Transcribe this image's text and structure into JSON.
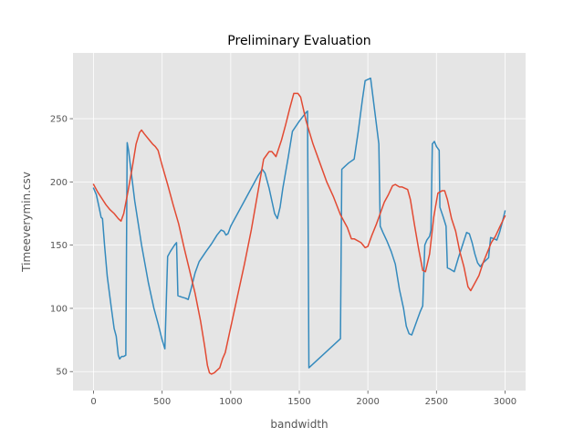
{
  "chart_data": {
    "type": "line",
    "title": "Preliminary Evaluation",
    "xlabel": "bandwidth",
    "ylabel": "Timeeverymin.csv",
    "xlim": [
      -150,
      3150
    ],
    "ylim": [
      35,
      302
    ],
    "xticks": [
      0,
      500,
      1000,
      1500,
      2000,
      2500,
      3000
    ],
    "yticks": [
      50,
      100,
      150,
      200,
      250
    ],
    "grid": true,
    "style": "ggplot",
    "background_color": "#E5E5E5",
    "series": [
      {
        "color": "#348ABD",
        "points": [
          [
            0,
            195
          ],
          [
            20,
            190
          ],
          [
            40,
            180
          ],
          [
            55,
            172
          ],
          [
            65,
            171
          ],
          [
            80,
            150
          ],
          [
            100,
            125
          ],
          [
            130,
            100
          ],
          [
            150,
            84
          ],
          [
            165,
            78
          ],
          [
            180,
            63
          ],
          [
            190,
            60
          ],
          [
            205,
            62
          ],
          [
            220,
            62
          ],
          [
            235,
            63
          ],
          [
            245,
            231
          ],
          [
            255,
            225
          ],
          [
            300,
            185
          ],
          [
            350,
            150
          ],
          [
            400,
            120
          ],
          [
            440,
            100
          ],
          [
            470,
            88
          ],
          [
            500,
            75
          ],
          [
            520,
            68
          ],
          [
            540,
            141
          ],
          [
            560,
            145
          ],
          [
            590,
            150
          ],
          [
            605,
            152
          ],
          [
            615,
            110
          ],
          [
            640,
            109
          ],
          [
            670,
            108
          ],
          [
            690,
            107
          ],
          [
            710,
            115
          ],
          [
            740,
            128
          ],
          [
            770,
            137
          ],
          [
            820,
            145
          ],
          [
            860,
            151
          ],
          [
            900,
            158
          ],
          [
            930,
            162
          ],
          [
            950,
            161
          ],
          [
            965,
            158
          ],
          [
            980,
            159
          ],
          [
            1000,
            165
          ],
          [
            1050,
            175
          ],
          [
            1100,
            185
          ],
          [
            1150,
            195
          ],
          [
            1200,
            205
          ],
          [
            1230,
            210
          ],
          [
            1250,
            207
          ],
          [
            1280,
            195
          ],
          [
            1300,
            185
          ],
          [
            1320,
            175
          ],
          [
            1340,
            171
          ],
          [
            1360,
            180
          ],
          [
            1380,
            195
          ],
          [
            1420,
            220
          ],
          [
            1450,
            240
          ],
          [
            1500,
            248
          ],
          [
            1550,
            255
          ],
          [
            1560,
            256
          ],
          [
            1570,
            53
          ],
          [
            1800,
            76
          ],
          [
            1810,
            210
          ],
          [
            1830,
            212
          ],
          [
            1860,
            215
          ],
          [
            1900,
            218
          ],
          [
            1930,
            240
          ],
          [
            1960,
            265
          ],
          [
            1980,
            280
          ],
          [
            2000,
            281
          ],
          [
            2020,
            282
          ],
          [
            2050,
            256
          ],
          [
            2080,
            230
          ],
          [
            2090,
            165
          ],
          [
            2110,
            160
          ],
          [
            2140,
            153
          ],
          [
            2170,
            145
          ],
          [
            2200,
            135
          ],
          [
            2230,
            115
          ],
          [
            2260,
            100
          ],
          [
            2280,
            86
          ],
          [
            2300,
            80
          ],
          [
            2320,
            79
          ],
          [
            2340,
            85
          ],
          [
            2360,
            91
          ],
          [
            2380,
            97
          ],
          [
            2400,
            102
          ],
          [
            2415,
            150
          ],
          [
            2430,
            154
          ],
          [
            2450,
            157
          ],
          [
            2460,
            162
          ],
          [
            2470,
            230
          ],
          [
            2485,
            232
          ],
          [
            2500,
            228
          ],
          [
            2520,
            225
          ],
          [
            2525,
            180
          ],
          [
            2550,
            172
          ],
          [
            2570,
            165
          ],
          [
            2580,
            132
          ],
          [
            2600,
            131
          ],
          [
            2630,
            129
          ],
          [
            2660,
            140
          ],
          [
            2690,
            150
          ],
          [
            2720,
            160
          ],
          [
            2740,
            159
          ],
          [
            2760,
            152
          ],
          [
            2780,
            143
          ],
          [
            2800,
            136
          ],
          [
            2820,
            133
          ],
          [
            2840,
            136
          ],
          [
            2860,
            138
          ],
          [
            2880,
            140
          ],
          [
            2895,
            156
          ],
          [
            2920,
            155
          ],
          [
            2940,
            154
          ],
          [
            2960,
            160
          ],
          [
            2980,
            168
          ],
          [
            3000,
            177
          ]
        ]
      },
      {
        "color": "#E24A33",
        "points": [
          [
            0,
            198
          ],
          [
            30,
            192
          ],
          [
            60,
            187
          ],
          [
            90,
            182
          ],
          [
            120,
            178
          ],
          [
            150,
            175
          ],
          [
            180,
            171
          ],
          [
            200,
            169
          ],
          [
            220,
            175
          ],
          [
            250,
            192
          ],
          [
            280,
            210
          ],
          [
            310,
            230
          ],
          [
            335,
            239
          ],
          [
            350,
            241
          ],
          [
            370,
            238
          ],
          [
            400,
            234
          ],
          [
            430,
            230
          ],
          [
            450,
            228
          ],
          [
            470,
            225
          ],
          [
            500,
            213
          ],
          [
            540,
            198
          ],
          [
            580,
            182
          ],
          [
            620,
            167
          ],
          [
            660,
            148
          ],
          [
            700,
            130
          ],
          [
            740,
            112
          ],
          [
            780,
            90
          ],
          [
            810,
            70
          ],
          [
            830,
            55
          ],
          [
            845,
            49
          ],
          [
            860,
            48
          ],
          [
            880,
            49
          ],
          [
            900,
            51
          ],
          [
            920,
            53
          ],
          [
            940,
            60
          ],
          [
            960,
            65
          ],
          [
            1000,
            85
          ],
          [
            1050,
            110
          ],
          [
            1100,
            135
          ],
          [
            1150,
            162
          ],
          [
            1200,
            193
          ],
          [
            1240,
            218
          ],
          [
            1260,
            221
          ],
          [
            1280,
            224
          ],
          [
            1300,
            224
          ],
          [
            1330,
            220
          ],
          [
            1370,
            233
          ],
          [
            1400,
            245
          ],
          [
            1430,
            258
          ],
          [
            1460,
            270
          ],
          [
            1490,
            270
          ],
          [
            1510,
            267
          ],
          [
            1550,
            248
          ],
          [
            1600,
            230
          ],
          [
            1650,
            215
          ],
          [
            1700,
            200
          ],
          [
            1750,
            188
          ],
          [
            1800,
            174
          ],
          [
            1850,
            164
          ],
          [
            1880,
            155
          ],
          [
            1900,
            155
          ],
          [
            1950,
            152
          ],
          [
            1980,
            148
          ],
          [
            2000,
            149
          ],
          [
            2030,
            158
          ],
          [
            2060,
            166
          ],
          [
            2090,
            175
          ],
          [
            2120,
            184
          ],
          [
            2150,
            190
          ],
          [
            2180,
            197
          ],
          [
            2200,
            198
          ],
          [
            2230,
            196
          ],
          [
            2250,
            196
          ],
          [
            2270,
            195
          ],
          [
            2290,
            194
          ],
          [
            2310,
            186
          ],
          [
            2340,
            166
          ],
          [
            2370,
            147
          ],
          [
            2400,
            130
          ],
          [
            2420,
            129
          ],
          [
            2450,
            143
          ],
          [
            2480,
            172
          ],
          [
            2510,
            191
          ],
          [
            2540,
            193
          ],
          [
            2560,
            193
          ],
          [
            2580,
            186
          ],
          [
            2610,
            171
          ],
          [
            2640,
            161
          ],
          [
            2670,
            145
          ],
          [
            2700,
            133
          ],
          [
            2730,
            117
          ],
          [
            2750,
            114
          ],
          [
            2780,
            120
          ],
          [
            2810,
            126
          ],
          [
            2840,
            136
          ],
          [
            2870,
            144
          ],
          [
            2900,
            152
          ],
          [
            2930,
            157
          ],
          [
            2960,
            164
          ],
          [
            3000,
            173
          ]
        ]
      }
    ]
  }
}
